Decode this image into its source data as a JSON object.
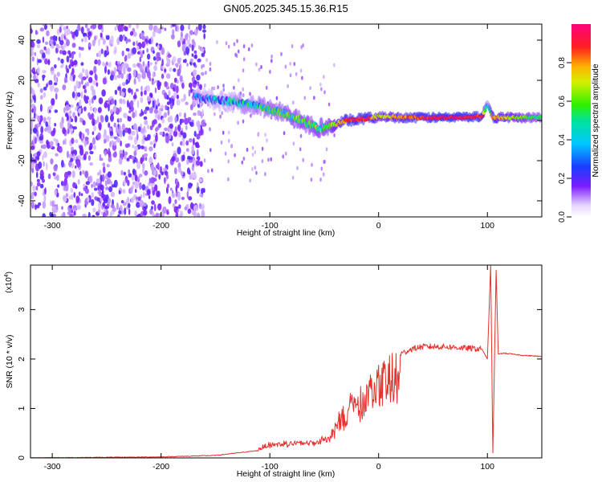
{
  "figure": {
    "title": "GN05.2025.345.15.36.R15"
  },
  "colors": {
    "snr_line": "#e8302c",
    "spectrum_track": "#7a1cff",
    "axis": "#000000"
  },
  "chart_data": [
    {
      "type": "heatmap",
      "name": "spectrogram",
      "xlabel": "Height of straight line (km)",
      "ylabel": "Frequency (Hz)",
      "xlim": [
        -320,
        150
      ],
      "ylim": [
        -48,
        48
      ],
      "xticks": [
        -300,
        -200,
        -100,
        0,
        100
      ],
      "yticks": [
        -40,
        -20,
        0,
        20,
        40
      ],
      "colorbar": {
        "label": "Normalized spectral amplitude",
        "range": [
          0,
          1
        ],
        "ticks": [
          0.0,
          0.2,
          0.4,
          0.6,
          0.8
        ],
        "tick_labels": [
          "0.0",
          "0.2",
          "0.4",
          "0.6",
          "0.8"
        ],
        "colormap": "rainbow (white-violet-blue-cyan-green-yellow-red-magenta)"
      },
      "ridge": {
        "description": "dominant frequency vs height",
        "x": [
          -170,
          -150,
          -130,
          -110,
          -90,
          -70,
          -55,
          -45,
          -30,
          -10,
          0,
          20,
          60,
          95,
          100,
          105,
          150
        ],
        "y": [
          12,
          10,
          9,
          7,
          4,
          0,
          -4,
          -3,
          0,
          1,
          2,
          1.5,
          1.5,
          2,
          8,
          1.5,
          1.5
        ],
        "peak_amplitude": [
          0.2,
          0.3,
          0.4,
          0.45,
          0.5,
          0.55,
          0.55,
          0.55,
          0.9,
          0.9,
          0.65,
          0.8,
          0.95,
          0.9,
          0.3,
          0.8,
          0.5
        ]
      },
      "noise_region": {
        "x_range": [
          -320,
          -160
        ],
        "y_range": [
          -48,
          48
        ],
        "amplitude": "0.1-0.3"
      }
    },
    {
      "type": "line",
      "name": "snr",
      "xlabel": "Height of straight line (km)",
      "ylabel": "SNR (10 * v/v)",
      "scale_label_base": "(x10",
      "scale_label_exp": "4",
      "scale_label_end": ")",
      "xlim": [
        -320,
        150
      ],
      "ylim": [
        0,
        3.9
      ],
      "xticks": [
        -300,
        -200,
        -100,
        0,
        100
      ],
      "yticks": [
        0,
        1,
        2,
        3
      ],
      "envelope": {
        "x": [
          -320,
          -200,
          -150,
          -110,
          -100,
          -80,
          -60,
          -45,
          -40,
          -25,
          -10,
          0,
          10,
          20,
          30,
          40,
          60,
          80,
          95,
          100,
          103,
          105,
          108,
          110,
          115,
          130,
          150
        ],
        "y": [
          0.0,
          0.02,
          0.05,
          0.15,
          0.25,
          0.28,
          0.3,
          0.4,
          0.7,
          1.15,
          1.5,
          1.8,
          2.0,
          2.1,
          2.2,
          2.25,
          2.25,
          2.22,
          2.2,
          2.0,
          3.9,
          0.1,
          3.8,
          2.1,
          2.12,
          2.08,
          2.05
        ]
      }
    }
  ]
}
